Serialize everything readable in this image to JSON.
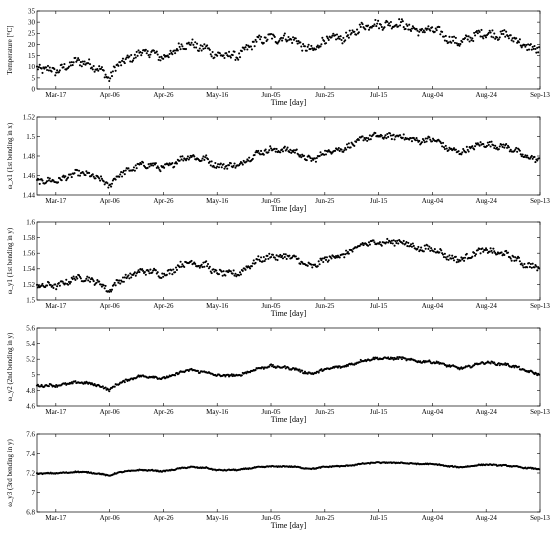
{
  "chart_data": [
    {
      "type": "scatter",
      "ylabel": "Temperature [°C]",
      "xlabel": "Time [day]",
      "ylim": [
        0,
        35
      ],
      "yticks": [
        "0",
        "5",
        "10",
        "15",
        "20",
        "25",
        "30",
        "35"
      ],
      "xticks": [
        "Mar-17",
        "Apr-06",
        "Apr-26",
        "May-16",
        "Jun-05",
        "Jun-25",
        "Jul-15",
        "Aug-04",
        "Aug-24",
        "Sep-13"
      ],
      "x_range": [
        "Mar-10",
        "Sep-13"
      ],
      "trend": {
        "x": [
          "Mar-10",
          "Mar-17",
          "Mar-27",
          "Apr-01",
          "Apr-06",
          "Apr-10",
          "Apr-16",
          "Apr-26",
          "May-06",
          "May-12",
          "May-16",
          "May-24",
          "Jun-05",
          "Jun-12",
          "Jun-20",
          "Jun-25",
          "Jul-05",
          "Jul-15",
          "Jul-25",
          "Aug-04",
          "Aug-10",
          "Aug-16",
          "Aug-24",
          "Sep-04",
          "Sep-13"
        ],
        "y": [
          8,
          9,
          12,
          11,
          4,
          12,
          16,
          15,
          20,
          19,
          14,
          16,
          24,
          22,
          18,
          21,
          25,
          30,
          28,
          26,
          23,
          21,
          26,
          22,
          17
        ]
      },
      "spread": 2.2,
      "grid": false
    },
    {
      "type": "scatter",
      "ylabel": "ω_x1 (1st bending in x)",
      "xlabel": "Time [day]",
      "ylim": [
        1.44,
        1.52
      ],
      "yticks": [
        "1.44",
        "1.46",
        "1.48",
        "1.5",
        "1.52"
      ],
      "xticks": [
        "Mar-17",
        "Apr-06",
        "Apr-26",
        "May-16",
        "Jun-05",
        "Jun-25",
        "Jul-15",
        "Aug-04",
        "Aug-24",
        "Sep-13"
      ],
      "x_range": [
        "Mar-10",
        "Sep-13"
      ],
      "trend": {
        "x": [
          "Mar-10",
          "Mar-17",
          "Mar-27",
          "Apr-01",
          "Apr-06",
          "Apr-10",
          "Apr-16",
          "Apr-26",
          "May-06",
          "May-12",
          "May-16",
          "May-24",
          "Jun-05",
          "Jun-12",
          "Jun-20",
          "Jun-25",
          "Jul-05",
          "Jul-15",
          "Jul-25",
          "Aug-04",
          "Aug-10",
          "Aug-16",
          "Aug-24",
          "Sep-04",
          "Sep-13"
        ],
        "y": [
          1.452,
          1.456,
          1.462,
          1.46,
          1.448,
          1.462,
          1.47,
          1.469,
          1.479,
          1.478,
          1.468,
          1.472,
          1.488,
          1.485,
          1.477,
          1.482,
          1.492,
          1.502,
          1.498,
          1.496,
          1.488,
          1.484,
          1.494,
          1.485,
          1.475
        ]
      },
      "spread": 0.0035,
      "grid": false
    },
    {
      "type": "scatter",
      "ylabel": "ω_y1 (1st bending in y)",
      "xlabel": "Time [day]",
      "ylim": [
        1.5,
        1.6
      ],
      "yticks": [
        "1.5",
        "1.52",
        "1.54",
        "1.56",
        "1.58",
        "1.6"
      ],
      "xticks": [
        "Mar-17",
        "Apr-06",
        "Apr-26",
        "May-16",
        "Jun-05",
        "Jun-25",
        "Jul-15",
        "Aug-04",
        "Aug-24",
        "Sep-13"
      ],
      "x_range": [
        "Mar-10",
        "Sep-13"
      ],
      "trend": {
        "x": [
          "Mar-10",
          "Mar-17",
          "Mar-27",
          "Apr-01",
          "Apr-06",
          "Apr-10",
          "Apr-16",
          "Apr-26",
          "May-06",
          "May-12",
          "May-16",
          "May-24",
          "Jun-05",
          "Jun-12",
          "Jun-20",
          "Jun-25",
          "Jul-05",
          "Jul-15",
          "Jul-25",
          "Aug-04",
          "Aug-10",
          "Aug-16",
          "Aug-24",
          "Sep-04",
          "Sep-13"
        ],
        "y": [
          1.516,
          1.52,
          1.528,
          1.526,
          1.51,
          1.526,
          1.536,
          1.534,
          1.548,
          1.546,
          1.532,
          1.536,
          1.558,
          1.554,
          1.544,
          1.55,
          1.564,
          1.576,
          1.572,
          1.564,
          1.556,
          1.552,
          1.566,
          1.552,
          1.54
        ]
      },
      "spread": 0.0045,
      "grid": false
    },
    {
      "type": "scatter",
      "ylabel": "ω_y2 (2nd bending in y)",
      "xlabel": "Time [day]",
      "ylim": [
        4.6,
        5.6
      ],
      "yticks": [
        "4.6",
        "4.8",
        "5",
        "5.2",
        "5.4",
        "5.6"
      ],
      "xticks": [
        "Mar-17",
        "Apr-06",
        "Apr-26",
        "May-16",
        "Jun-05",
        "Jun-25",
        "Jul-15",
        "Aug-04",
        "Aug-24",
        "Sep-13"
      ],
      "x_range": [
        "Mar-10",
        "Sep-13"
      ],
      "trend": {
        "x": [
          "Mar-10",
          "Mar-17",
          "Mar-27",
          "Apr-01",
          "Apr-06",
          "Apr-10",
          "Apr-16",
          "Apr-26",
          "May-06",
          "May-12",
          "May-16",
          "May-24",
          "Jun-05",
          "Jun-12",
          "Jun-20",
          "Jun-25",
          "Jul-05",
          "Jul-15",
          "Jul-25",
          "Aug-04",
          "Aug-10",
          "Aug-16",
          "Aug-24",
          "Sep-04",
          "Sep-13"
        ],
        "y": [
          4.85,
          4.87,
          4.9,
          4.88,
          4.8,
          4.9,
          4.98,
          4.96,
          5.06,
          5.04,
          4.98,
          5.0,
          5.12,
          5.08,
          5.02,
          5.06,
          5.14,
          5.22,
          5.2,
          5.16,
          5.12,
          5.08,
          5.17,
          5.1,
          5.0
        ]
      },
      "spread": 0.018,
      "grid": false
    },
    {
      "type": "scatter",
      "ylabel": "ω_y3 (3rd bending in y)",
      "xlabel": "Time [day]",
      "ylim": [
        6.8,
        7.6
      ],
      "yticks": [
        "6.8",
        "7",
        "7.2",
        "7.4",
        "7.6"
      ],
      "xticks": [
        "Mar-17",
        "Apr-06",
        "Apr-26",
        "May-16",
        "Jun-05",
        "Jun-25",
        "Jul-15",
        "Aug-04",
        "Aug-24",
        "Sep-13"
      ],
      "x_range": [
        "Mar-10",
        "Sep-13"
      ],
      "trend": {
        "x": [
          "Mar-10",
          "Mar-17",
          "Mar-27",
          "Apr-01",
          "Apr-06",
          "Apr-10",
          "Apr-16",
          "Apr-26",
          "May-06",
          "May-12",
          "May-16",
          "May-24",
          "Jun-05",
          "Jun-12",
          "Jun-20",
          "Jun-25",
          "Jul-05",
          "Jul-15",
          "Jul-25",
          "Aug-04",
          "Aug-10",
          "Aug-16",
          "Aug-24",
          "Sep-04",
          "Sep-13"
        ],
        "y": [
          7.19,
          7.2,
          7.21,
          7.2,
          7.17,
          7.21,
          7.23,
          7.22,
          7.26,
          7.255,
          7.225,
          7.235,
          7.27,
          7.265,
          7.245,
          7.26,
          7.28,
          7.31,
          7.3,
          7.29,
          7.27,
          7.26,
          7.29,
          7.265,
          7.24
        ]
      },
      "spread": 0.006,
      "grid": false
    }
  ]
}
